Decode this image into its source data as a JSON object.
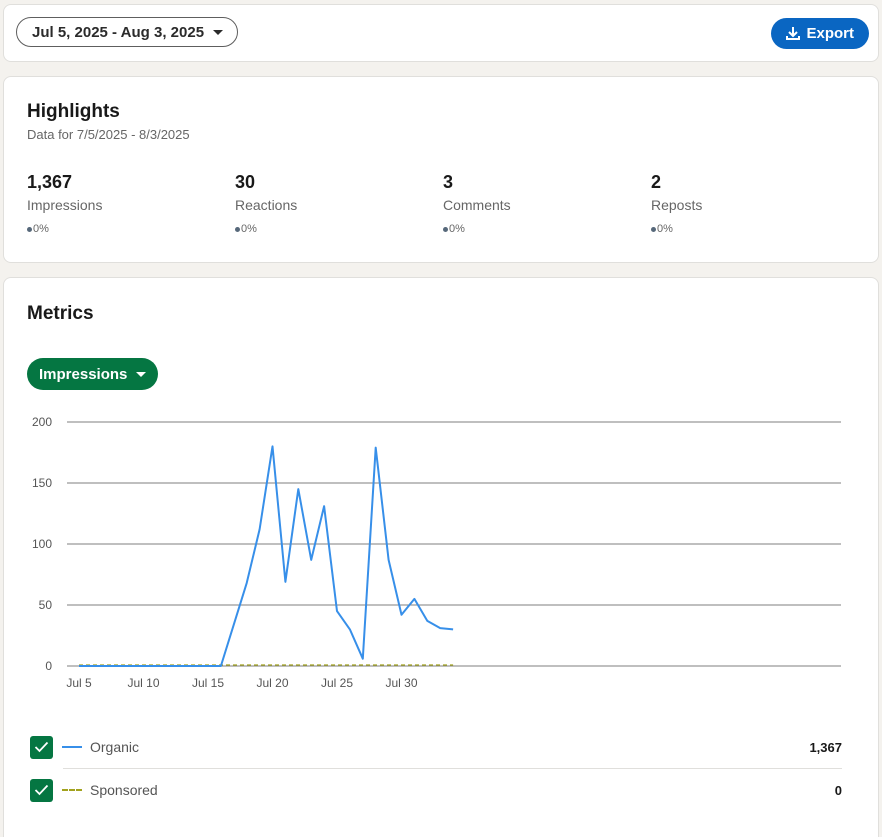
{
  "date_range": {
    "label": "Jul 5, 2025 - Aug 3, 2025"
  },
  "export": {
    "label": "Export",
    "icon": "download-icon"
  },
  "highlights": {
    "title": "Highlights",
    "subtitle": "Data for 7/5/2025 - 8/3/2025",
    "stats": [
      {
        "value": "1,367",
        "label": "Impressions",
        "change": "0%"
      },
      {
        "value": "30",
        "label": "Reactions",
        "change": "0%"
      },
      {
        "value": "3",
        "label": "Comments",
        "change": "0%"
      },
      {
        "value": "2",
        "label": "Reposts",
        "change": "0%"
      }
    ]
  },
  "metrics": {
    "title": "Metrics",
    "metric_selector": "Impressions"
  },
  "colors": {
    "primary_blue": "#0a66c2",
    "green": "#057642",
    "organic_line": "#378fe9",
    "sponsored_line": "#a2a21e"
  },
  "chart_data": {
    "type": "line",
    "ylim": [
      0,
      200
    ],
    "yticks": [
      "0",
      "50",
      "100",
      "150",
      "200"
    ],
    "xtick_labels": [
      "Jul 5",
      "Jul 10",
      "Jul 15",
      "Jul 20",
      "Jul 25",
      "Jul 30"
    ],
    "x": [
      "Jul 5",
      "Jul 6",
      "Jul 7",
      "Jul 8",
      "Jul 9",
      "Jul 10",
      "Jul 11",
      "Jul 12",
      "Jul 13",
      "Jul 14",
      "Jul 15",
      "Jul 16",
      "Jul 17",
      "Jul 18",
      "Jul 19",
      "Jul 20",
      "Jul 21",
      "Jul 22",
      "Jul 23",
      "Jul 24",
      "Jul 25",
      "Jul 26",
      "Jul 27",
      "Jul 28",
      "Jul 29",
      "Jul 30",
      "Jul 31",
      "Aug 1",
      "Aug 2",
      "Aug 3"
    ],
    "series": [
      {
        "name": "Organic",
        "style": "solid",
        "values": [
          0,
          0,
          0,
          0,
          0,
          0,
          0,
          0,
          0,
          0,
          0,
          0,
          34,
          68,
          112,
          180,
          69,
          145,
          87,
          131,
          45,
          30,
          6,
          179,
          87,
          42,
          55,
          37,
          31,
          30
        ],
        "total": "1,367"
      },
      {
        "name": "Sponsored",
        "style": "dashed",
        "values": [
          0,
          0,
          0,
          0,
          0,
          0,
          0,
          0,
          0,
          0,
          0,
          0,
          0,
          0,
          0,
          0,
          0,
          0,
          0,
          0,
          0,
          0,
          0,
          0,
          0,
          0,
          0,
          0,
          0,
          0
        ],
        "total": "0"
      }
    ],
    "grid": true,
    "legend": "bottom"
  }
}
